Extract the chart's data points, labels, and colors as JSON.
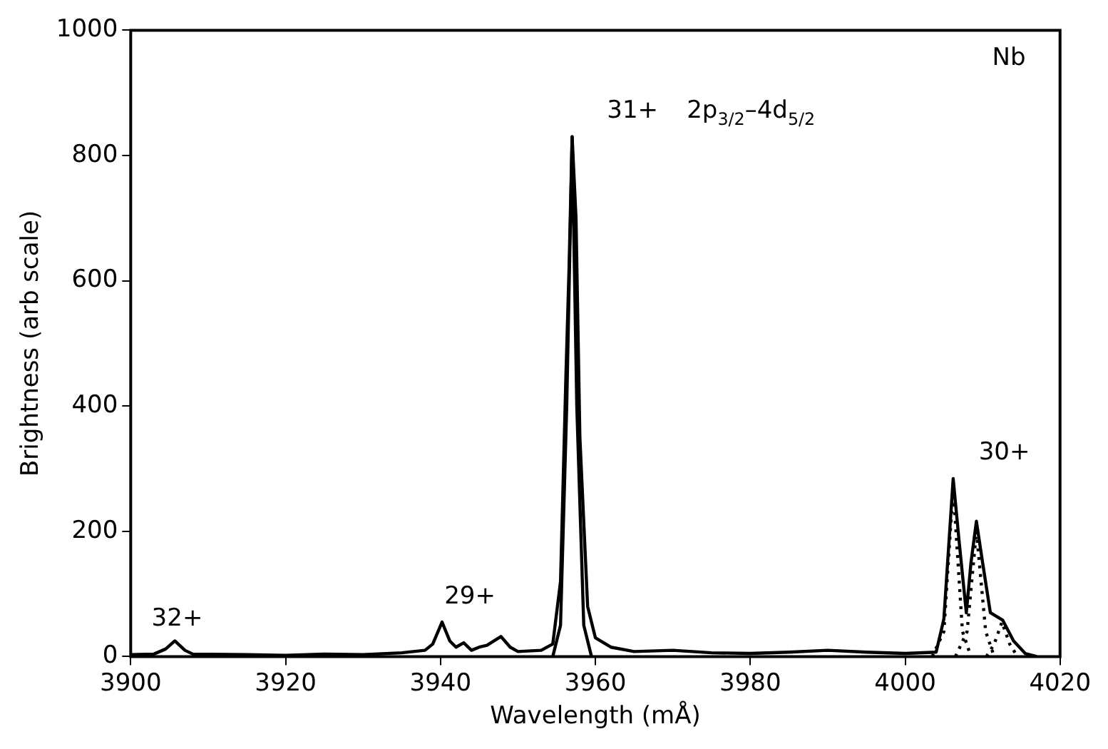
{
  "chart_data": {
    "type": "line",
    "xlabel": "Wavelength (mÅ)",
    "ylabel": "Brightness (arb scale)",
    "xlim": [
      3900,
      4020
    ],
    "xticks": [
      3900,
      3920,
      3940,
      3960,
      3980,
      4000,
      4020
    ],
    "ylim": [
      0,
      1000
    ],
    "yticks": [
      0,
      200,
      400,
      600,
      800,
      1000
    ],
    "grid": false,
    "legend": false,
    "marker": "none",
    "series": [
      {
        "color": "#000000",
        "line_style": "solid",
        "x": [
          3900,
          3903,
          3904.5,
          3905.7,
          3907,
          3908,
          3915,
          3920,
          3925,
          3930,
          3935,
          3938,
          3939,
          3940.2,
          3941.2,
          3942,
          3943,
          3944,
          3945,
          3946,
          3947.8,
          3949,
          3950,
          3953,
          3954.5,
          3955.5,
          3956.2,
          3956.6,
          3957,
          3957.5,
          3958,
          3959,
          3960,
          3962,
          3965,
          3970,
          3975,
          3980,
          3985,
          3990,
          3995,
          4000,
          4004,
          4005,
          4006.2,
          4007,
          4007.9,
          4008.5,
          4009.2,
          4010,
          4011,
          4012.6,
          4014,
          4015.5,
          4017
        ],
        "values": [
          3,
          4,
          12,
          25,
          10,
          4,
          3,
          2,
          4,
          3,
          6,
          10,
          20,
          55,
          25,
          15,
          22,
          10,
          15,
          18,
          32,
          15,
          8,
          10,
          20,
          120,
          450,
          620,
          830,
          700,
          350,
          80,
          30,
          15,
          8,
          10,
          6,
          5,
          7,
          10,
          7,
          5,
          7,
          60,
          284,
          180,
          70,
          150,
          216,
          150,
          70,
          58,
          25,
          5,
          0
        ]
      },
      {
        "color": "#000000",
        "line_style": "solid",
        "x": [
          3954.5,
          3955.5,
          3956.3,
          3957,
          3957.6,
          3958.5,
          3959.5
        ],
        "values": [
          0,
          50,
          400,
          830,
          400,
          50,
          0
        ]
      },
      {
        "color": "#000000",
        "line_style": "dotted",
        "x": [
          4003.5,
          4005,
          4006.2,
          4007.4,
          4008.5
        ],
        "values": [
          0,
          40,
          270,
          40,
          0
        ]
      },
      {
        "color": "#000000",
        "line_style": "dotted",
        "x": [
          4006.5,
          4008,
          4009.2,
          4010.4,
          4011.5
        ],
        "values": [
          0,
          40,
          200,
          40,
          0
        ]
      },
      {
        "color": "#000000",
        "line_style": "dotted",
        "x": [
          4010.5,
          4011.5,
          4012.5,
          4013.5,
          4014.5
        ],
        "values": [
          0,
          20,
          55,
          20,
          0
        ]
      }
    ],
    "annotations": [
      "32+",
      "29+",
      "31+",
      "2p$_{3/2}$–4d$_{5/2}$",
      "Nb",
      "30+"
    ]
  }
}
